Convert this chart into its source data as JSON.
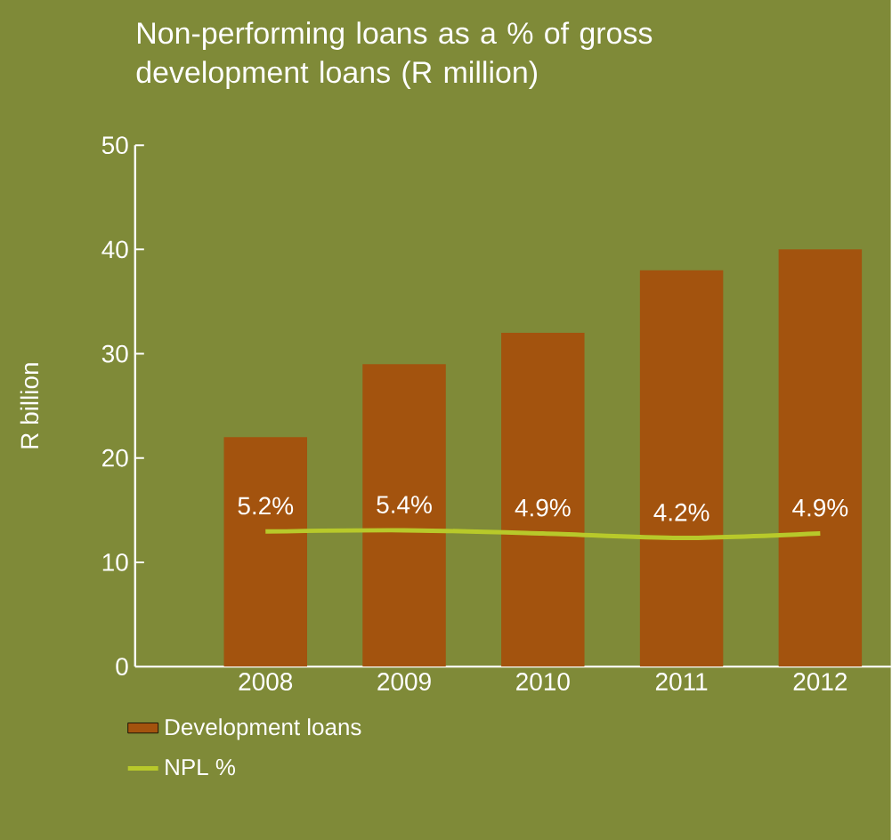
{
  "chart_data": {
    "type": "bar",
    "title": "Non-performing loans as a % of gross development loans (R million)",
    "ylabel": "R billion",
    "categories": [
      "2008",
      "2009",
      "2010",
      "2011",
      "2012"
    ],
    "series": [
      {
        "name": "Development loans",
        "color": "#a3530e",
        "values": [
          22,
          29,
          32,
          38,
          40
        ]
      },
      {
        "name": "NPL %",
        "type": "line",
        "axis": "y2",
        "color": "#b8c92a",
        "values": [
          5.2,
          5.4,
          4.9,
          4.2,
          4.9
        ],
        "value_labels": [
          "5.2%",
          "5.4%",
          "4.9%",
          "4.2%",
          "4.9%"
        ]
      }
    ],
    "ylim": [
      0,
      50
    ],
    "yticks": [
      0,
      10,
      20,
      30,
      40,
      50
    ],
    "y2lim": [
      -15.8,
      65.3
    ],
    "tick_labels": "xy",
    "legend": "bottom left",
    "grid": false
  }
}
